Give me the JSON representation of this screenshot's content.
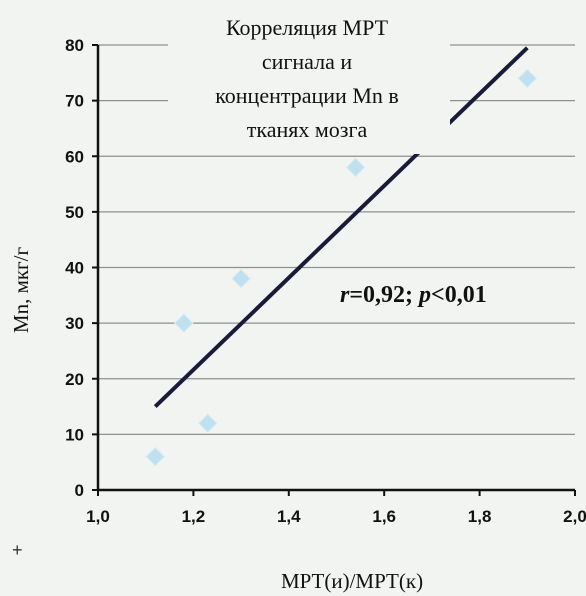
{
  "chart_data": {
    "type": "scatter",
    "title_lines": [
      "Корреляция МРТ",
      "сигнала и",
      "концентрации Mn в",
      "тканях мозга"
    ],
    "xlabel": "МРТ(и)/МРТ(к)",
    "ylabel": "Mn, мкг/г",
    "xlim": [
      1.0,
      2.0
    ],
    "ylim": [
      0,
      80
    ],
    "x_ticks": [
      "1,0",
      "1,2",
      "1,4",
      "1,6",
      "1,8",
      "2,0"
    ],
    "y_ticks": [
      "0",
      "10",
      "20",
      "30",
      "40",
      "50",
      "60",
      "70",
      "80"
    ],
    "grid": "horizontal",
    "points": [
      {
        "x": 1.12,
        "y": 6
      },
      {
        "x": 1.18,
        "y": 30
      },
      {
        "x": 1.23,
        "y": 12
      },
      {
        "x": 1.3,
        "y": 38
      },
      {
        "x": 1.54,
        "y": 58
      },
      {
        "x": 1.9,
        "y": 74
      }
    ],
    "trendline": {
      "x": [
        1.12,
        1.9
      ],
      "y": [
        15,
        79.5
      ]
    },
    "annotation": {
      "r": "r",
      "r_value": "=0,92; ",
      "p": "p",
      "p_value": "<0,01"
    },
    "colors": {
      "marker": "#bfe0ee",
      "trendline": "#1a1a3a",
      "grid": "#8e918c",
      "axis": "#111111"
    }
  },
  "corner_mark": "+"
}
